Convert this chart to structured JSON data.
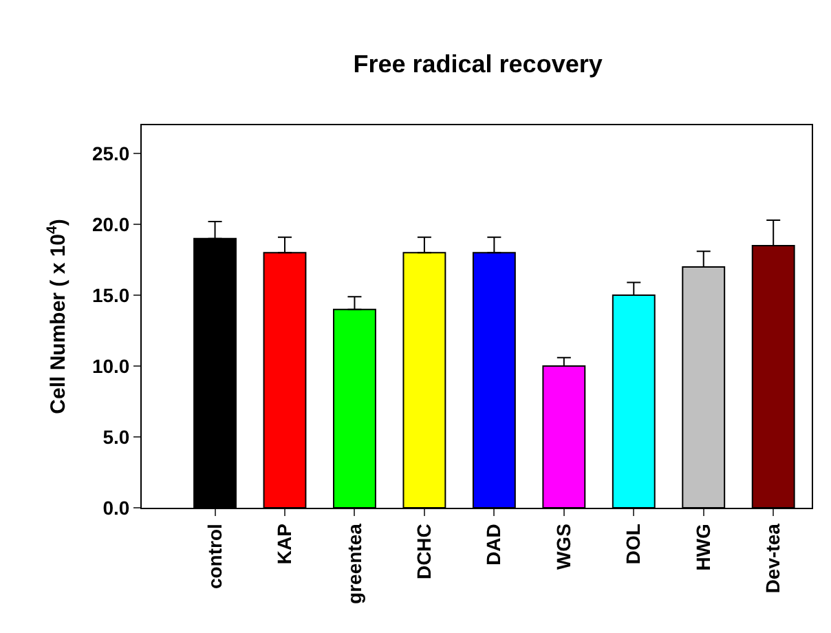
{
  "chart_data": {
    "type": "bar",
    "title": "Free radical recovery",
    "ylabel": "Cell Number ( x 10$^{4}$)",
    "categories": [
      "control",
      "KAP",
      "greentea",
      "DCHC",
      "DAD",
      "WGS",
      "DOL",
      "HWG",
      "Dev-tea"
    ],
    "values": [
      19,
      18,
      14,
      18,
      18,
      10,
      15,
      17,
      18.5
    ],
    "colors": [
      "#000000",
      "#ff0000",
      "#00ff00",
      "#ffff00",
      "#0000ff",
      "#ff00ff",
      "#00ffff",
      "#c0c0c0",
      "#800000"
    ],
    "errors": [
      [
        19,
        20.2
      ],
      [
        18,
        19.1
      ],
      [
        14,
        14.9
      ],
      [
        18,
        19.1
      ],
      [
        18,
        19.1
      ],
      [
        10,
        10.6
      ],
      [
        15,
        15.9
      ],
      [
        17,
        18.1
      ],
      [
        18.5,
        20.3
      ]
    ],
    "ylim": [
      0,
      27
    ],
    "yticks": [
      {
        "value": 0,
        "label": "0.0"
      },
      {
        "value": 5,
        "label": "5.0"
      },
      {
        "value": 10,
        "label": "10.0"
      },
      {
        "value": 15,
        "label": "15.0"
      },
      {
        "value": 20,
        "label": "20.0"
      },
      {
        "value": 25,
        "label": "25.0"
      }
    ]
  }
}
